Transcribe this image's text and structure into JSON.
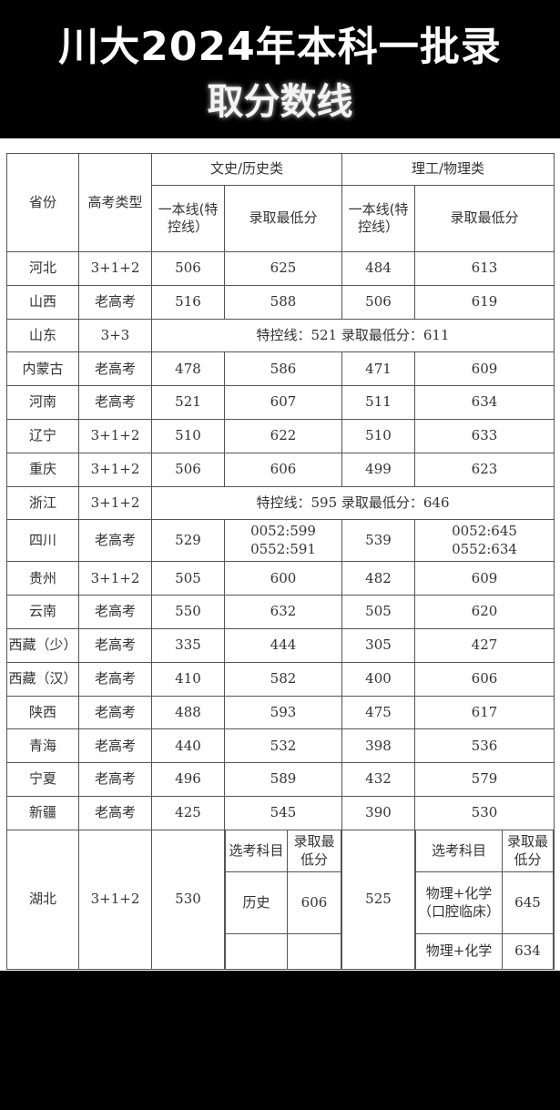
{
  "title": {
    "line1": "川大2024年本科一批录",
    "line2": "取分数线"
  },
  "headers": {
    "province": "省份",
    "exam_type": "高考类型",
    "liberal": "文史/历史类",
    "science": "理工/物理类",
    "first_line": "一本线(特控线）",
    "min_score": "录取最低分"
  },
  "rows": [
    {
      "province": "河北",
      "type": "3+1+2",
      "wl": "506",
      "wmin": "625",
      "ll": "484",
      "lmin": "613"
    },
    {
      "province": "山西",
      "type": "老高考",
      "wl": "516",
      "wmin": "588",
      "ll": "506",
      "lmin": "619"
    },
    {
      "province": "山东",
      "type": "3+3",
      "merged": "特控线：521   录取最低分：611"
    },
    {
      "province": "内蒙古",
      "type": "老高考",
      "wl": "478",
      "wmin": "586",
      "ll": "471",
      "lmin": "609"
    },
    {
      "province": "河南",
      "type": "老高考",
      "wl": "521",
      "wmin": "607",
      "ll": "511",
      "lmin": "634"
    },
    {
      "province": "辽宁",
      "type": "3+1+2",
      "wl": "510",
      "wmin": "622",
      "ll": "510",
      "lmin": "633"
    },
    {
      "province": "重庆",
      "type": "3+1+2",
      "wl": "506",
      "wmin": "606",
      "ll": "499",
      "lmin": "623"
    },
    {
      "province": "浙江",
      "type": "3+1+2",
      "merged": "特控线：595   录取最低分：646"
    },
    {
      "province": "四川",
      "type": "老高考",
      "wl": "529",
      "wmin": "0052:599\n0552:591",
      "ll": "539",
      "lmin": "0052:645\n0552:634",
      "tall": true
    },
    {
      "province": "贵州",
      "type": "3+1+2",
      "wl": "505",
      "wmin": "600",
      "ll": "482",
      "lmin": "609"
    },
    {
      "province": "云南",
      "type": "老高考",
      "wl": "550",
      "wmin": "632",
      "ll": "505",
      "lmin": "620"
    },
    {
      "province": "西藏（少）",
      "type": "老高考",
      "wl": "335",
      "wmin": "444",
      "ll": "305",
      "lmin": "427"
    },
    {
      "province": "西藏（汉）",
      "type": "老高考",
      "wl": "410",
      "wmin": "582",
      "ll": "400",
      "lmin": "606"
    },
    {
      "province": "陕西",
      "type": "老高考",
      "wl": "488",
      "wmin": "593",
      "ll": "475",
      "lmin": "617"
    },
    {
      "province": "青海",
      "type": "老高考",
      "wl": "440",
      "wmin": "532",
      "ll": "398",
      "lmin": "536"
    },
    {
      "province": "宁夏",
      "type": "老高考",
      "wl": "496",
      "wmin": "589",
      "ll": "432",
      "lmin": "579"
    },
    {
      "province": "新疆",
      "type": "老高考",
      "wl": "425",
      "wmin": "545",
      "ll": "390",
      "lmin": "530"
    }
  ],
  "hubei": {
    "province": "湖北",
    "type": "3+1+2",
    "wl": "530",
    "ll": "525",
    "subject_header_left": "选考科目",
    "subject_header_right": "选考科目",
    "min_header": "录取最低分",
    "liberal_subject": "历史",
    "liberal_min": "606",
    "science": [
      {
        "subject": "物理+化学（口腔临床）",
        "min": "645"
      },
      {
        "subject": "物理+化学",
        "min": "634"
      }
    ]
  }
}
